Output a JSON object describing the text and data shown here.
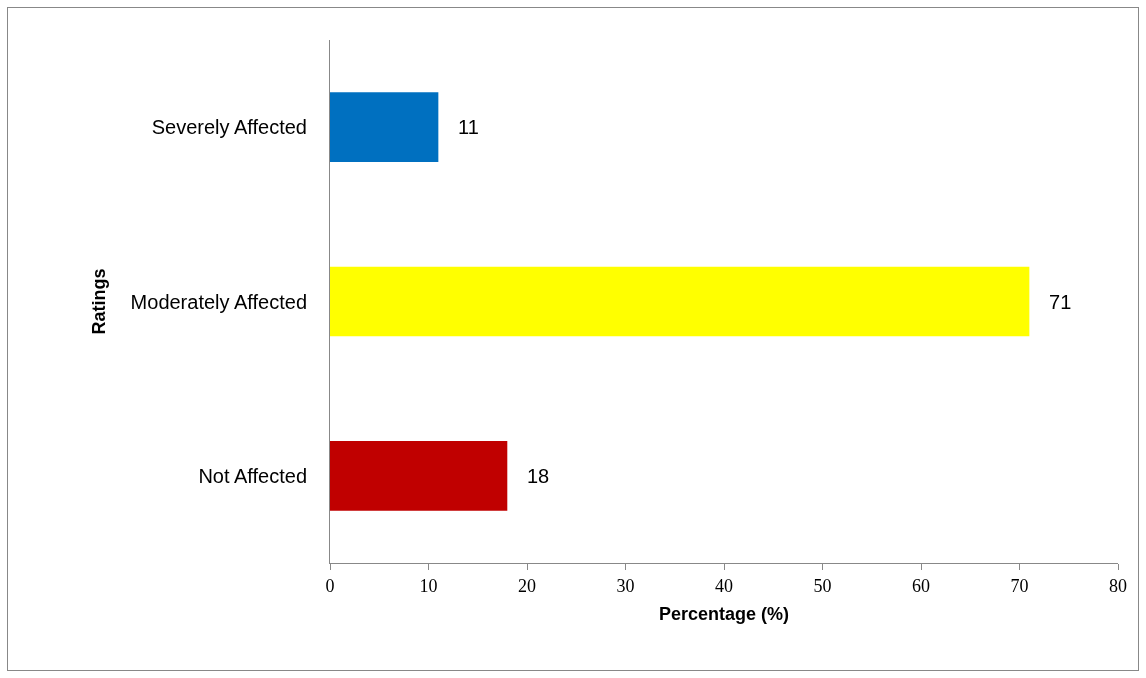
{
  "chart_data": {
    "type": "bar",
    "orientation": "horizontal",
    "xlabel": "Percentage (%)",
    "ylabel": "Ratings",
    "categories": [
      "Severely Affected",
      "Moderately Affected",
      "Not Affected"
    ],
    "values": [
      11,
      71,
      18
    ],
    "colors": [
      "#0070c0",
      "#ffff00",
      "#c00000"
    ],
    "xlim": [
      0,
      80
    ],
    "xticks": [
      0,
      10,
      20,
      30,
      40,
      50,
      60,
      70,
      80
    ],
    "grid": false,
    "data_labels": true
  }
}
